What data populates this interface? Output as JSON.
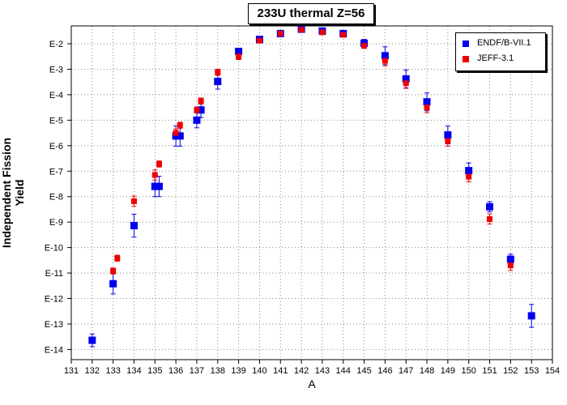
{
  "chart_data": {
    "type": "scatter",
    "title": "233U thermal Z=56",
    "xlabel": "A",
    "ylabel": "Independent Fission Yield",
    "xlim": [
      131,
      154
    ],
    "ylim_exponent": [
      -14.4,
      -1.3
    ],
    "y_scale": "log",
    "grid": true,
    "legend_position": "top-right",
    "x_ticks": [
      "131",
      "132",
      "133",
      "134",
      "135",
      "136",
      "137",
      "138",
      "139",
      "140",
      "141",
      "142",
      "143",
      "144",
      "145",
      "146",
      "147",
      "148",
      "149",
      "150",
      "151",
      "152",
      "153",
      "154"
    ],
    "y_ticks": [
      {
        "exp": -2,
        "label": "E-2"
      },
      {
        "exp": -3,
        "label": "E-3"
      },
      {
        "exp": -4,
        "label": "E-4"
      },
      {
        "exp": -5,
        "label": "E-5"
      },
      {
        "exp": -6,
        "label": "E-6"
      },
      {
        "exp": -7,
        "label": "E-7"
      },
      {
        "exp": -8,
        "label": "E-8"
      },
      {
        "exp": -9,
        "label": "E-9"
      },
      {
        "exp": -10,
        "label": "E-10"
      },
      {
        "exp": -11,
        "label": "E-11"
      },
      {
        "exp": -12,
        "label": "E-12"
      },
      {
        "exp": -13,
        "label": "E-13"
      },
      {
        "exp": -14,
        "label": "E-14"
      }
    ],
    "series": [
      {
        "name": "ENDF/B-VII.1",
        "color": "#0000ee",
        "marker": "square",
        "points": [
          {
            "x": 132,
            "log10y": -13.64,
            "err_dec": 0.25
          },
          {
            "x": 133,
            "log10y": -11.42,
            "err_dec": 0.4
          },
          {
            "x": 134,
            "log10y": -9.14,
            "err_dec": 0.45
          },
          {
            "x": 135,
            "log10y": -7.6,
            "err_dec": 0.4
          },
          {
            "x": 135.2,
            "log10y": -7.6,
            "err_dec": 0.4
          },
          {
            "x": 136,
            "log10y": -5.62,
            "err_dec": 0.4
          },
          {
            "x": 136.2,
            "log10y": -5.62,
            "err_dec": 0.4
          },
          {
            "x": 137,
            "log10y": -5.0,
            "err_dec": 0.3
          },
          {
            "x": 137.2,
            "log10y": -4.6,
            "err_dec": 0.3
          },
          {
            "x": 138,
            "log10y": -3.48,
            "err_dec": 0.3
          },
          {
            "x": 139,
            "log10y": -2.3,
            "err_dec": 0.1
          },
          {
            "x": 140,
            "log10y": -1.83,
            "err_dec": 0.1
          },
          {
            "x": 141,
            "log10y": -1.6,
            "err_dec": 0.08
          },
          {
            "x": 142,
            "log10y": -1.43,
            "err_dec": 0.08
          },
          {
            "x": 143,
            "log10y": -1.5,
            "err_dec": 0.08
          },
          {
            "x": 144,
            "log10y": -1.6,
            "err_dec": 0.08
          },
          {
            "x": 145,
            "log10y": -1.98,
            "err_dec": 0.15
          },
          {
            "x": 146,
            "log10y": -2.47,
            "err_dec": 0.35
          },
          {
            "x": 147,
            "log10y": -3.38,
            "err_dec": 0.35
          },
          {
            "x": 148,
            "log10y": -4.28,
            "err_dec": 0.35
          },
          {
            "x": 149,
            "log10y": -5.58,
            "err_dec": 0.35
          },
          {
            "x": 150,
            "log10y": -6.98,
            "err_dec": 0.3
          },
          {
            "x": 151,
            "log10y": -8.4,
            "err_dec": 0.2
          },
          {
            "x": 152,
            "log10y": -10.46,
            "err_dec": 0.2
          },
          {
            "x": 153,
            "log10y": -12.68,
            "err_dec": 0.45
          }
        ]
      },
      {
        "name": "JEFF-3.1",
        "color": "#ee0000",
        "marker": "square",
        "points": [
          {
            "x": 133,
            "log10y": -10.92,
            "err_dec": 0.12
          },
          {
            "x": 133.2,
            "log10y": -10.42,
            "err_dec": 0.12
          },
          {
            "x": 134,
            "log10y": -8.18,
            "err_dec": 0.2
          },
          {
            "x": 135,
            "log10y": -7.15,
            "err_dec": 0.2
          },
          {
            "x": 135.2,
            "log10y": -6.72,
            "err_dec": 0.12
          },
          {
            "x": 136,
            "log10y": -5.5,
            "err_dec": 0.15
          },
          {
            "x": 136.2,
            "log10y": -5.2,
            "err_dec": 0.12
          },
          {
            "x": 137,
            "log10y": -4.6,
            "err_dec": 0.12
          },
          {
            "x": 137.2,
            "log10y": -4.25,
            "err_dec": 0.12
          },
          {
            "x": 138,
            "log10y": -3.12,
            "err_dec": 0.12
          },
          {
            "x": 139,
            "log10y": -2.5,
            "err_dec": 0.12
          },
          {
            "x": 140,
            "log10y": -1.88,
            "err_dec": 0.08
          },
          {
            "x": 141,
            "log10y": -1.6,
            "err_dec": 0.06
          },
          {
            "x": 142,
            "log10y": -1.45,
            "err_dec": 0.06
          },
          {
            "x": 143,
            "log10y": -1.55,
            "err_dec": 0.06
          },
          {
            "x": 144,
            "log10y": -1.65,
            "err_dec": 0.06
          },
          {
            "x": 145,
            "log10y": -2.08,
            "err_dec": 0.1
          },
          {
            "x": 146,
            "log10y": -2.67,
            "err_dec": 0.2
          },
          {
            "x": 147,
            "log10y": -3.55,
            "err_dec": 0.2
          },
          {
            "x": 148,
            "log10y": -4.5,
            "err_dec": 0.2
          },
          {
            "x": 149,
            "log10y": -5.82,
            "err_dec": 0.2
          },
          {
            "x": 150,
            "log10y": -7.22,
            "err_dec": 0.2
          },
          {
            "x": 151,
            "log10y": -8.88,
            "err_dec": 0.2
          },
          {
            "x": 152,
            "log10y": -10.7,
            "err_dec": 0.2
          }
        ]
      }
    ]
  }
}
